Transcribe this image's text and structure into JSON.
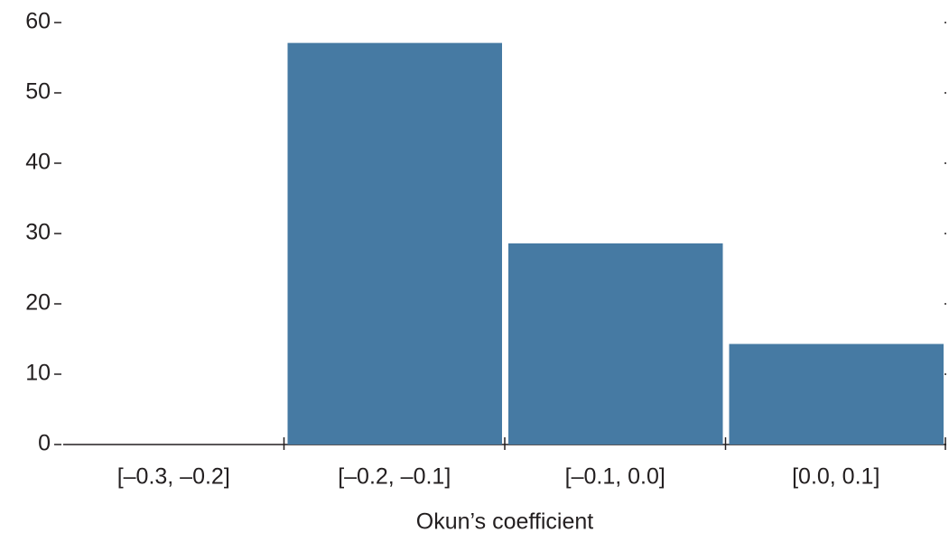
{
  "chart_data": {
    "type": "bar",
    "x_label": "Okun’s coefficient",
    "categories": [
      "[–0.3, –0.2]",
      "[–0.2, –0.1]",
      "[–0.1, 0.0]",
      "[0.0, 0.1]"
    ],
    "values": [
      0,
      57.1,
      28.6,
      14.3
    ],
    "color": "#467aa3",
    "ylim": [
      0,
      60
    ],
    "yticks": [
      0,
      10,
      20,
      30,
      40,
      50,
      60
    ],
    "grid": false
  }
}
